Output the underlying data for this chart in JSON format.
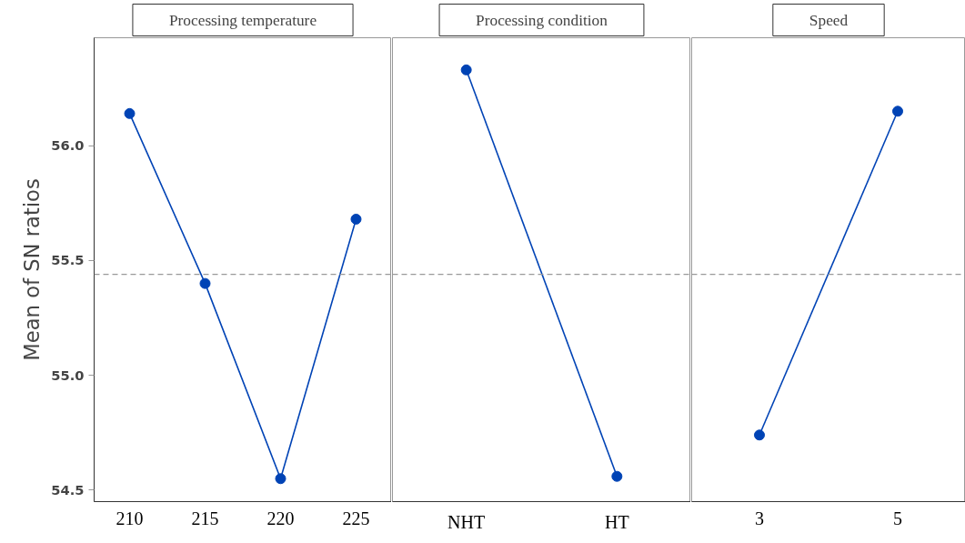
{
  "chart_data": [
    {
      "type": "line",
      "title": "Processing temperature",
      "ylabel": "Mean of SN ratios",
      "categories": [
        "210",
        "215",
        "220",
        "225"
      ],
      "series": [
        {
          "color": "#0043b5",
          "values": [
            56.14,
            55.4,
            54.55,
            55.68
          ]
        }
      ],
      "ylim": [
        54.45,
        56.47
      ],
      "yticks": [
        {
          "value": 54.5,
          "label": "54.5"
        },
        {
          "value": 55,
          "label": "55.0"
        },
        {
          "value": 55.5,
          "label": "55.5"
        },
        {
          "value": 56,
          "label": "56.0"
        }
      ],
      "ref_lines": [
        {
          "axis": "y",
          "value": 55.44,
          "color": "#999999",
          "line_style": "dashed"
        }
      ],
      "marker": "circle",
      "grid": false
    },
    {
      "type": "line",
      "title": "Processing condition",
      "categories": [
        "NHT",
        "HT"
      ],
      "series": [
        {
          "color": "#0043b5",
          "values": [
            56.33,
            54.56
          ]
        }
      ],
      "ylim": [
        54.45,
        56.47
      ],
      "ref_lines": [
        {
          "axis": "y",
          "value": 55.44,
          "color": "#999999",
          "line_style": "dashed"
        }
      ],
      "marker": "circle",
      "grid": false,
      "tick_labels": "x"
    },
    {
      "type": "line",
      "title": "Speed",
      "categories": [
        "3",
        "5"
      ],
      "series": [
        {
          "color": "#0043b5",
          "values": [
            54.74,
            56.15
          ]
        }
      ],
      "ylim": [
        54.45,
        56.47
      ],
      "ref_lines": [
        {
          "axis": "y",
          "value": 55.44,
          "color": "#999999",
          "line_style": "dashed"
        }
      ],
      "marker": "circle",
      "grid": false,
      "tick_labels": "x"
    }
  ]
}
